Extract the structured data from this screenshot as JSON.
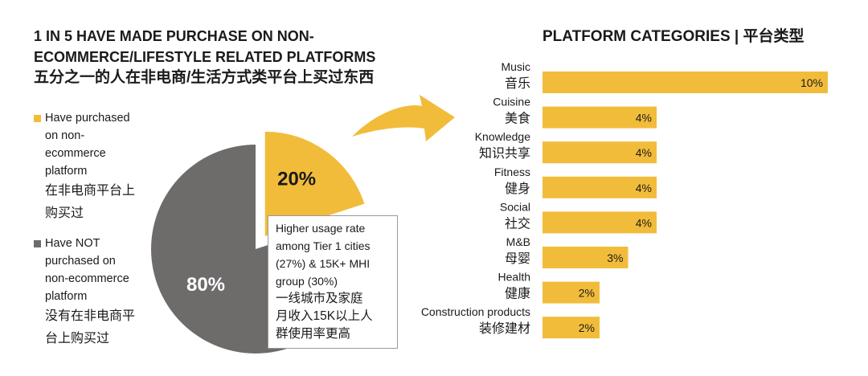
{
  "left_title": {
    "line1": "1 IN 5 HAVE MADE PURCHASE ON NON-",
    "line2": "ECOMMERCE/LIFESTYLE RELATED PLATFORMS",
    "line3_cn": "五分之一的人在非电商/生活方式类平台上买过东西"
  },
  "legend": {
    "purchased": {
      "lines": [
        "Have purchased",
        "on non-",
        "ecommerce",
        "platform"
      ],
      "cn_lines": [
        "在非电商平台上",
        "购买过"
      ]
    },
    "not_purchased": {
      "lines": [
        "Have NOT",
        "purchased on",
        "non-ecommerce",
        "platform"
      ],
      "cn_lines": [
        "没有在非电商平",
        "台上购买过"
      ]
    }
  },
  "callout": {
    "lines": [
      "Higher usage rate",
      "among Tier 1 cities",
      "(27%) & 15K+ MHI",
      "group (30%)"
    ],
    "cn_lines": [
      "一线城市及家庭",
      "月收入15K以上人",
      "群使用率更高"
    ]
  },
  "right_title": "PLATFORM CATEGORIES | 平台类型",
  "colors": {
    "yellow": "#f2bc3b",
    "grey": "#6e6b6b",
    "text": "#1a1a1a"
  },
  "chart_data": [
    {
      "type": "pie",
      "title": "1 IN 5 HAVE MADE PURCHASE ON NON-ECOMMERCE/LIFESTYLE RELATED PLATFORMS",
      "slices": [
        {
          "name": "Have purchased on non-ecommerce platform",
          "value": 20,
          "label": "20%",
          "color": "#f2bc3b",
          "exploded": true
        },
        {
          "name": "Have NOT purchased on non-ecommerce platform",
          "value": 80,
          "label": "80%",
          "color": "#6e6b6b"
        }
      ]
    },
    {
      "type": "bar",
      "orientation": "horizontal",
      "title": "PLATFORM CATEGORIES | 平台类型",
      "xlim": [
        0,
        10
      ],
      "grid": false,
      "categories": [
        {
          "en": "Music",
          "cn": "音乐",
          "value": 10,
          "label": "10%"
        },
        {
          "en": "Cuisine",
          "cn": "美食",
          "value": 4,
          "label": "4%"
        },
        {
          "en": "Knowledge",
          "cn": "知识共享",
          "value": 4,
          "label": "4%"
        },
        {
          "en": "Fitness",
          "cn": "健身",
          "value": 4,
          "label": "4%"
        },
        {
          "en": "Social",
          "cn": "社交",
          "value": 4,
          "label": "4%"
        },
        {
          "en": "M&B",
          "cn": "母婴",
          "value": 3,
          "label": "3%"
        },
        {
          "en": "Health",
          "cn": "健康",
          "value": 2,
          "label": "2%"
        },
        {
          "en": "Construction products",
          "cn": "装修建材",
          "value": 2,
          "label": "2%"
        }
      ]
    }
  ]
}
